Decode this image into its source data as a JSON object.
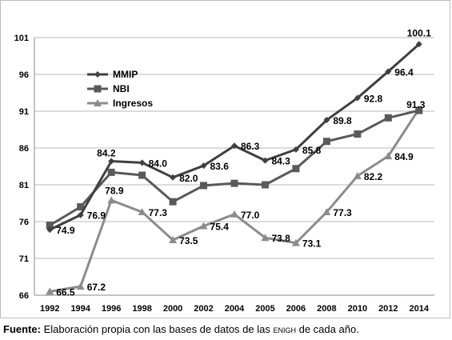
{
  "chart_data": {
    "type": "line",
    "categories": [
      "1992",
      "1994",
      "1996",
      "1998",
      "2000",
      "2002",
      "2004",
      "2005",
      "2006",
      "2008",
      "2010",
      "2012",
      "2014"
    ],
    "ylim": [
      66,
      101
    ],
    "yticks": [
      66,
      71,
      76,
      81,
      86,
      91,
      96,
      101
    ],
    "grid": true,
    "legend_position": "top-left",
    "series": [
      {
        "name": "MMIP",
        "marker": "diamond",
        "color": "#404040",
        "values": [
          74.9,
          76.9,
          84.2,
          84.0,
          82.0,
          83.6,
          86.3,
          84.3,
          85.8,
          89.8,
          92.8,
          96.4,
          100.1
        ],
        "labels": [
          "74.9",
          "76.9",
          "84.2",
          "84.0",
          "82.0",
          "83.6",
          "86.3",
          "84.3",
          "85.8",
          "89.8",
          "92.8",
          "96.4",
          "100.1"
        ]
      },
      {
        "name": "NBI",
        "marker": "square",
        "color": "#595959",
        "values": [
          75.5,
          78.0,
          82.7,
          82.3,
          78.7,
          80.9,
          81.2,
          81.0,
          83.2,
          86.9,
          87.9,
          90.1,
          91.1
        ],
        "labels": [
          "",
          "",
          "",
          "",
          "",
          "",
          "",
          "",
          "",
          "",
          "",
          "",
          ""
        ]
      },
      {
        "name": "Ingresos",
        "marker": "triangle",
        "color": "#8c8c8c",
        "values": [
          66.5,
          67.2,
          78.9,
          77.3,
          73.5,
          75.4,
          77.0,
          73.8,
          73.1,
          77.3,
          82.2,
          84.9,
          91.3
        ],
        "labels": [
          "66.5",
          "67.2",
          "78.9",
          "77.3",
          "73.5",
          "75.4",
          "77.0",
          "73.8",
          "73.1",
          "77.3",
          "82.2",
          "84.9",
          "91.3"
        ]
      }
    ]
  },
  "footnote": {
    "label": "Fuente:",
    "text_before": " Elaboración propia con las bases de datos de las ",
    "acronym": "enigh",
    "text_after": " de cada año."
  }
}
